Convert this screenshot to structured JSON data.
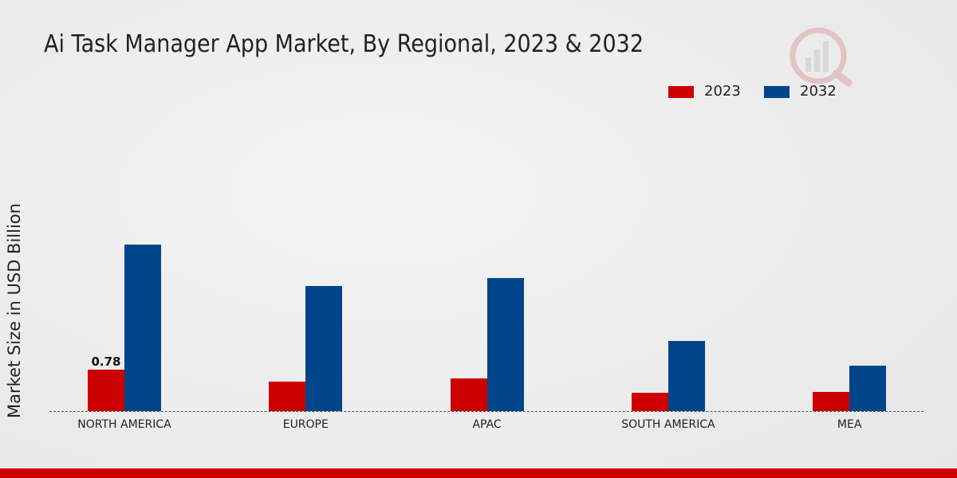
{
  "chart_data": {
    "type": "bar",
    "title": "Ai Task Manager App Market, By Regional, 2023 & 2032",
    "y_label": "Market Size in USD Billion",
    "categories": [
      "NORTH AMERICA",
      "EUROPE",
      "APAC",
      "SOUTH AMERICA",
      "MEA"
    ],
    "series": [
      {
        "name": "2023",
        "color": "#cc0000",
        "values": [
          0.78,
          0.55,
          0.61,
          0.34,
          0.36
        ]
      },
      {
        "name": "2032",
        "color": "#004589",
        "values": [
          3.13,
          2.35,
          2.5,
          1.32,
          0.85
        ]
      }
    ]
  }
}
